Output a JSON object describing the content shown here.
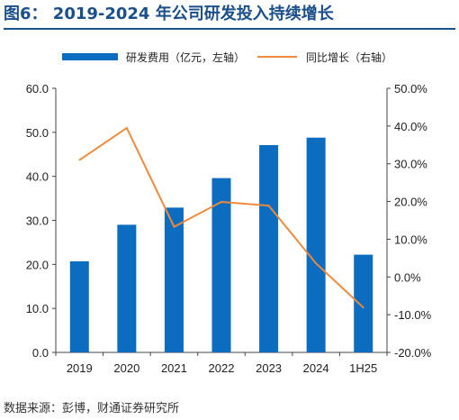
{
  "header": {
    "title": "图6： 2019-2024 年公司研发投入持续增长"
  },
  "footer": {
    "source": "数据来源：彭博，财通证券研究所"
  },
  "colors": {
    "bar": "#0b6cc0",
    "line": "#ef8a3c",
    "title": "#1a4f8a",
    "axis": "#444444"
  },
  "chart_data": {
    "type": "bar",
    "categories": [
      "2019",
      "2020",
      "2021",
      "2022",
      "2023",
      "2024",
      "1H25"
    ],
    "series": [
      {
        "name": "研发费用（亿元，左轴）",
        "type": "bar",
        "axis": "left",
        "values": [
          20.7,
          29.0,
          32.9,
          39.6,
          47.1,
          48.8,
          22.2
        ]
      },
      {
        "name": "同比增长（右轴）",
        "type": "line",
        "axis": "right",
        "values": [
          31.0,
          39.5,
          13.3,
          19.9,
          18.9,
          3.6,
          -8.1
        ]
      }
    ],
    "left_axis": {
      "ylim": [
        0,
        60
      ],
      "ticks": [
        "0.0",
        "10.0",
        "20.0",
        "30.0",
        "40.0",
        "50.0",
        "60.0"
      ]
    },
    "right_axis": {
      "ylim": [
        -20,
        50
      ],
      "ticks": [
        "-20.0%",
        "-10.0%",
        "0.0%",
        "10.0%",
        "20.0%",
        "30.0%",
        "40.0%",
        "50.0%"
      ]
    },
    "legend_position": "top",
    "grid": false
  }
}
